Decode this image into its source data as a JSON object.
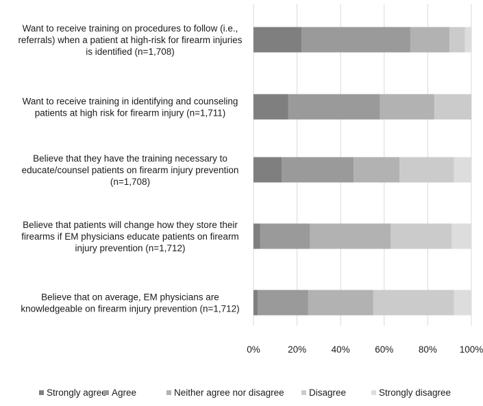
{
  "chart_data": {
    "type": "bar",
    "orientation": "horizontal",
    "stacked": true,
    "normalized_percent": true,
    "title": "",
    "xlabel": "",
    "ylabel": "",
    "xlim": [
      0,
      100
    ],
    "x_ticks": [
      "0%",
      "20%",
      "40%",
      "60%",
      "80%",
      "100%"
    ],
    "grid": "vertical",
    "legend_position": "bottom",
    "categories": [
      "Want to receive training on procedures to follow (i.e., referrals) when a patient at high-risk for firearm injuries is identified (n=1,708)",
      "Want to receive training in identifying and counseling patients at high risk for firearm injury (n=1,711)",
      "Believe that they have the training necessary to educate/counsel patients on firearm injury prevention (n=1,708)",
      "Believe that patients will change how they store their firearms if EM physicians educate patients on firearm injury prevention (n=1,712)",
      "Believe that on average, EM physicians are knowledgeable on firearm injury prevention (n=1,712)"
    ],
    "category_lines": [
      [
        "Want to receive training on procedures to follow (i.e.,",
        "referrals) when a patient at high-risk for firearm injuries",
        "is identified (n=1,708)"
      ],
      [
        "Want to receive training in identifying and counseling",
        "patients at high risk for firearm injury (n=1,711)"
      ],
      [
        "Believe that they have the training necessary to",
        "educate/counsel patients on firearm injury prevention",
        "(n=1,708)"
      ],
      [
        "Believe that patients will change how they store their",
        "firearms if EM physicians educate patients on firearm",
        "injury prevention (n=1,712)"
      ],
      [
        "Believe that on average, EM physicians are",
        "knowledgeable on firearm injury prevention (n=1,712)"
      ]
    ],
    "series": [
      {
        "name": "Strongly agree",
        "color": "#7f7f7f",
        "values": [
          22,
          16,
          13,
          3,
          2
        ]
      },
      {
        "name": "Agree",
        "color": "#9a9a9a",
        "values": [
          50,
          42,
          33,
          23,
          23
        ]
      },
      {
        "name": "Neither agree nor disagree",
        "color": "#b2b2b2",
        "values": [
          18,
          25,
          21,
          37,
          30
        ]
      },
      {
        "name": "Disagree",
        "color": "#cbcbcb",
        "values": [
          7,
          17,
          25,
          28,
          37
        ]
      },
      {
        "name": "Strongly disagree",
        "color": "#dddddd",
        "values": [
          3,
          0,
          8,
          9,
          8
        ]
      }
    ]
  }
}
